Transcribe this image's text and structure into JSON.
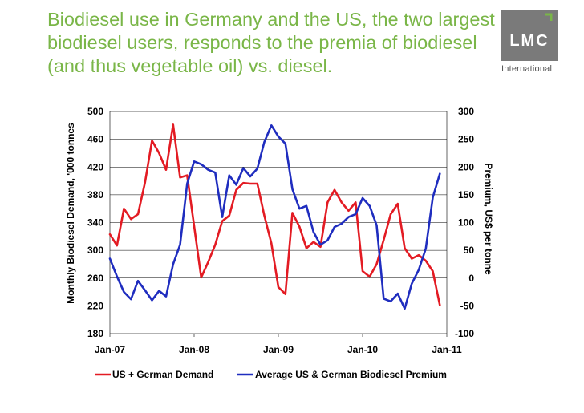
{
  "slide": {
    "title": "Biodiesel use in Germany and the US, the two largest biodiesel users, responds to the premia of biodiesel (and thus vegetable oil) vs. diesel.",
    "logo_text": "LMC",
    "logo_subtext": "International",
    "title_color": "#7ab648",
    "logo_color": "#7a7a7a"
  },
  "chart_data": {
    "type": "line",
    "title": "",
    "ylabel": "Monthly Biodiesel Demand, '000 tonnes",
    "y2label": "Premium, US$ per tonne",
    "ylim": [
      180,
      500
    ],
    "y2lim": [
      -100,
      300
    ],
    "yticks": [
      "500",
      "460",
      "420",
      "380",
      "340",
      "300",
      "260",
      "220",
      "180"
    ],
    "y2ticks": [
      "300",
      "250",
      "200",
      "150",
      "100",
      "50",
      "0",
      "-50",
      "-100"
    ],
    "xticks": [
      "Jan-07",
      "Jan-08",
      "Jan-09",
      "Jan-10",
      "Jan-11"
    ],
    "x_months_start": "Jan-07",
    "legend_position": "bottom",
    "series": [
      {
        "name": "US + German Demand",
        "axis": "left",
        "color": "#e31b23",
        "values": [
          323,
          307,
          360,
          345,
          352,
          398,
          458,
          440,
          416,
          481,
          405,
          408,
          335,
          261,
          283,
          308,
          342,
          350,
          387,
          397,
          396,
          396,
          350,
          310,
          247,
          237,
          354,
          334,
          303,
          312,
          305,
          369,
          387,
          369,
          357,
          369,
          270,
          262,
          280,
          315,
          352,
          367,
          303,
          288,
          293,
          285,
          270,
          221
        ]
      },
      {
        "name": "Average US & German Biodiesel Premium",
        "axis": "right",
        "color": "#1f2dbf",
        "values": [
          35,
          3,
          -25,
          -38,
          -5,
          -22,
          -40,
          -23,
          -33,
          25,
          60,
          170,
          210,
          205,
          195,
          190,
          110,
          185,
          168,
          198,
          183,
          197,
          245,
          275,
          255,
          242,
          160,
          125,
          130,
          83,
          60,
          68,
          92,
          98,
          110,
          115,
          144,
          130,
          95,
          -37,
          -42,
          -28,
          -55,
          -10,
          15,
          53,
          145,
          188
        ]
      }
    ]
  }
}
